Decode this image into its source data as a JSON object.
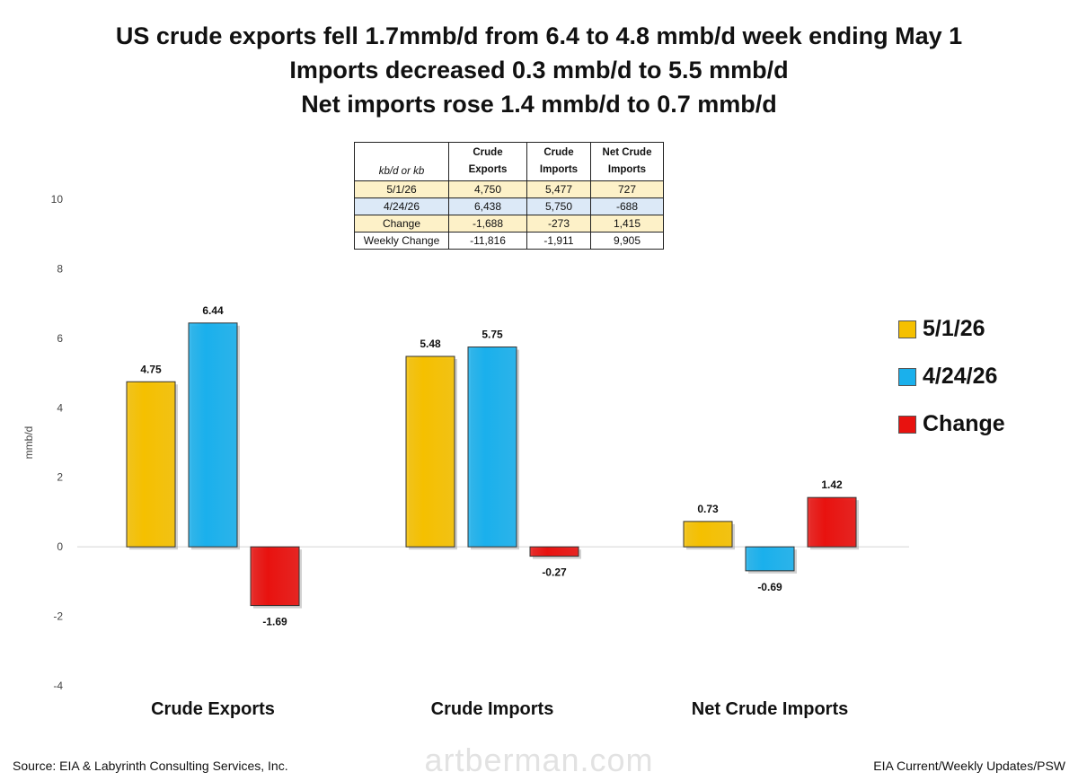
{
  "title_lines": [
    "US crude exports fell 1.7mmb/d from 6.4 to 4.8 mmb/d week ending May 1",
    "Imports decreased 0.3 mmb/d to 5.5 mmb/d",
    "Net imports rose 1.4 mmb/d to 0.7 mmb/d"
  ],
  "table": {
    "corner": "kb/d or kb",
    "headers": [
      "Crude Exports",
      "Crude Imports",
      "Net Crude Imports"
    ],
    "rows": [
      {
        "label": "5/1/26",
        "values": [
          "4,750",
          "5,477",
          "727"
        ]
      },
      {
        "label": "4/24/26",
        "values": [
          "6,438",
          "5,750",
          "-688"
        ]
      },
      {
        "label": "Change",
        "values": [
          "-1,688",
          "-273",
          "1,415"
        ]
      },
      {
        "label": "Weekly Change",
        "values": [
          "-11,816",
          "-1,911",
          "9,905"
        ]
      }
    ]
  },
  "chart_data": {
    "type": "bar",
    "categories": [
      "Crude Exports",
      "Crude Imports",
      "Net Crude Imports"
    ],
    "series": [
      {
        "name": "5/1/26",
        "values": [
          4.75,
          5.48,
          0.73
        ],
        "labels": [
          "4.75",
          "5.48",
          "0.73"
        ],
        "color": "#f5c000"
      },
      {
        "name": "4/24/26",
        "values": [
          6.44,
          5.75,
          -0.69
        ],
        "labels": [
          "6.44",
          "5.75",
          "-0.69"
        ],
        "color": "#1ab0ec"
      },
      {
        "name": "Change",
        "values": [
          -1.69,
          -0.27,
          1.42
        ],
        "labels": [
          "-1.69",
          "-0.27",
          "1.42"
        ],
        "color": "#e8120f"
      }
    ],
    "ylabel": "mmb/d",
    "ylim": [
      -4,
      10
    ],
    "yticks": [
      "-4",
      "-2",
      "0",
      "2",
      "4",
      "6",
      "8",
      "10"
    ],
    "grid": false,
    "legend_position": "right"
  },
  "footer": {
    "source": "Source: EIA & Labyrinth Consulting Services, Inc.",
    "right": "EIA Current/Weekly Updates/PSW",
    "watermark": "artberman.com"
  }
}
